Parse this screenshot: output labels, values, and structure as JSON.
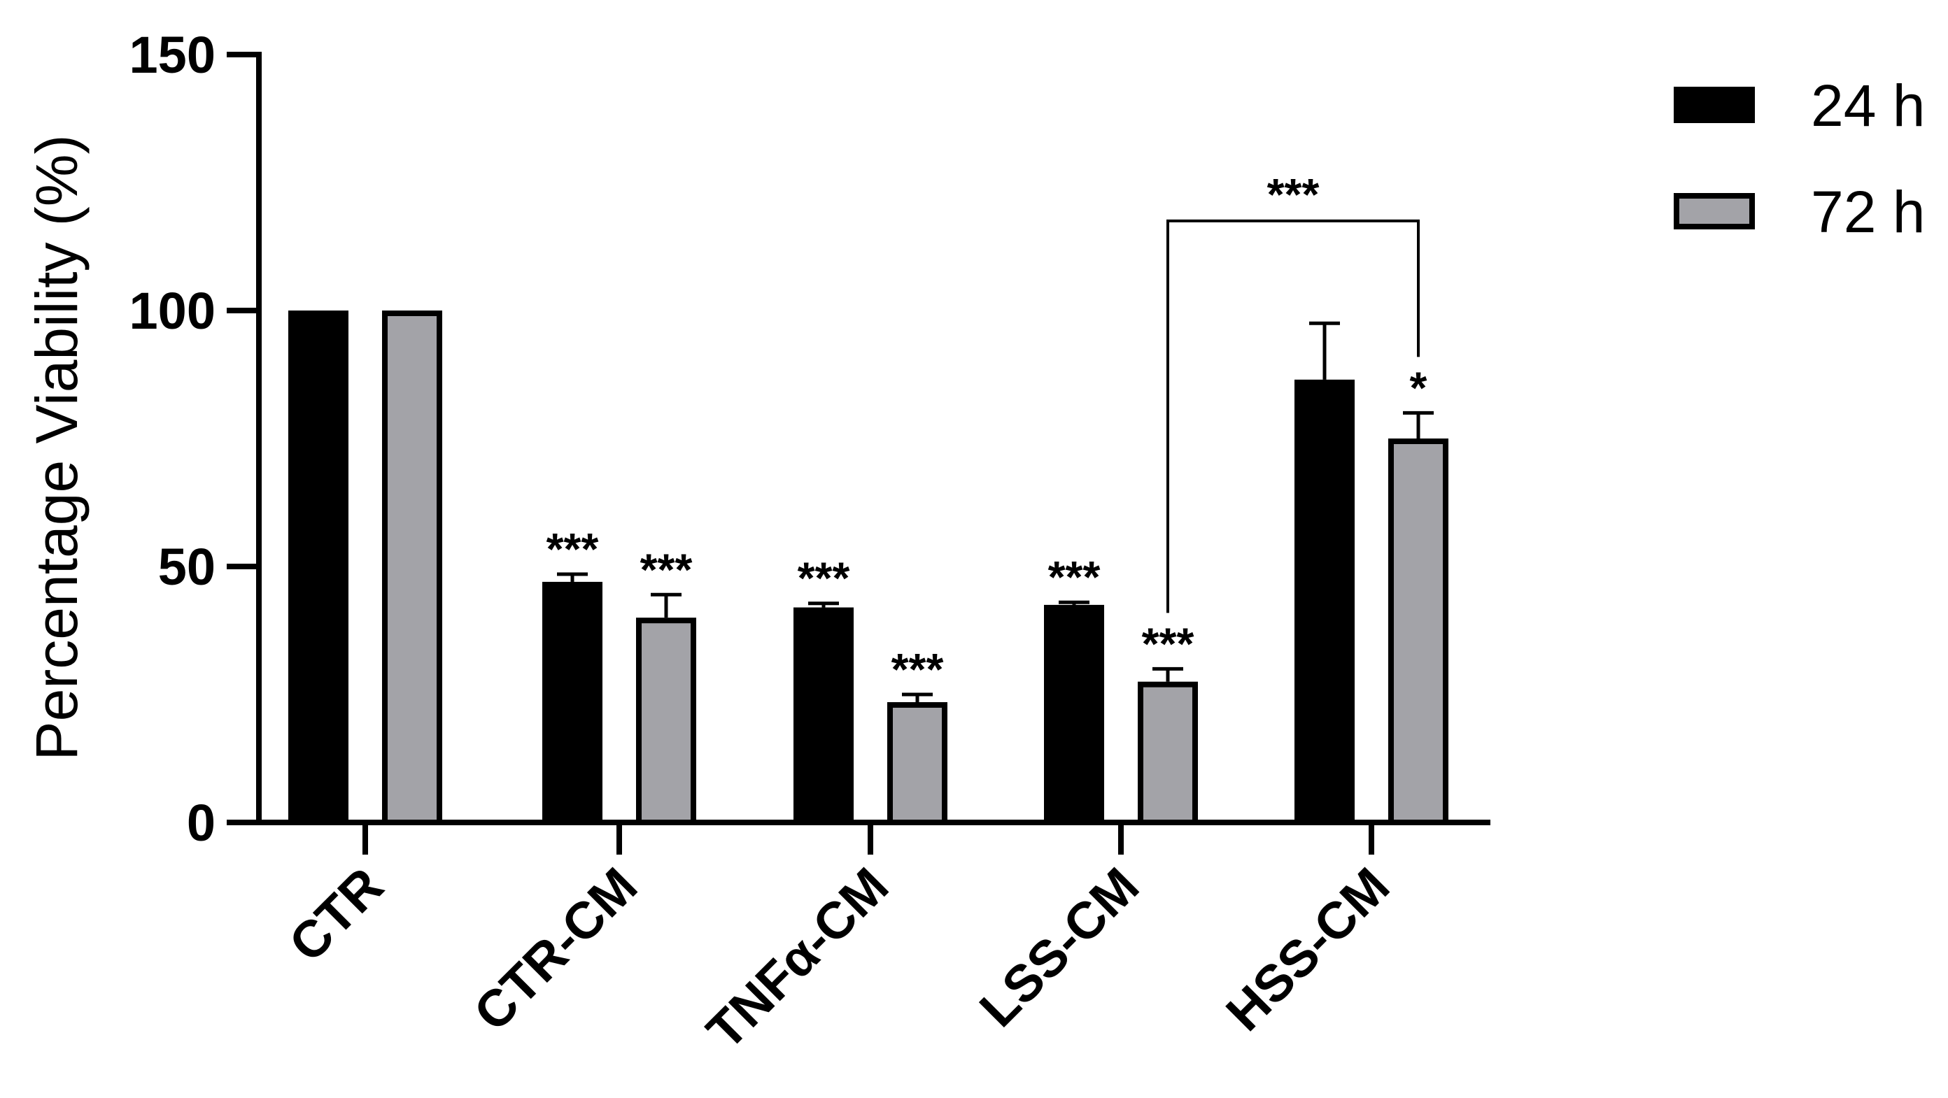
{
  "chart_data": {
    "type": "bar",
    "ylabel": "Percentage Viability (%)",
    "xlabel": "",
    "ylim": [
      0,
      150
    ],
    "yticks": [
      "0",
      "50",
      "100",
      "150"
    ],
    "categories": [
      "CTR",
      "CTR-CM",
      "TNFα-CM",
      "LSS-CM",
      "HSS-CM"
    ],
    "series": [
      {
        "name": "24 h",
        "color": "#000000",
        "values": [
          100,
          47,
          42,
          42.5,
          86.5
        ],
        "errors": [
          0,
          1.5,
          0.8,
          0.5,
          11
        ],
        "significance": [
          "",
          "***",
          "***",
          "***",
          ""
        ]
      },
      {
        "name": "72 h",
        "color": "#a3a3a8",
        "values": [
          100,
          40,
          23.5,
          27.5,
          75
        ],
        "errors": [
          0,
          4.5,
          1.5,
          2.5,
          5
        ],
        "significance": [
          "",
          "***",
          "***",
          "***",
          "*"
        ]
      }
    ],
    "comparison": {
      "label": "***",
      "from_category": "LSS-CM",
      "to_category": "HSS-CM",
      "series": "72 h",
      "y": 117.5
    },
    "legend_position": "top-right",
    "grid": false
  }
}
